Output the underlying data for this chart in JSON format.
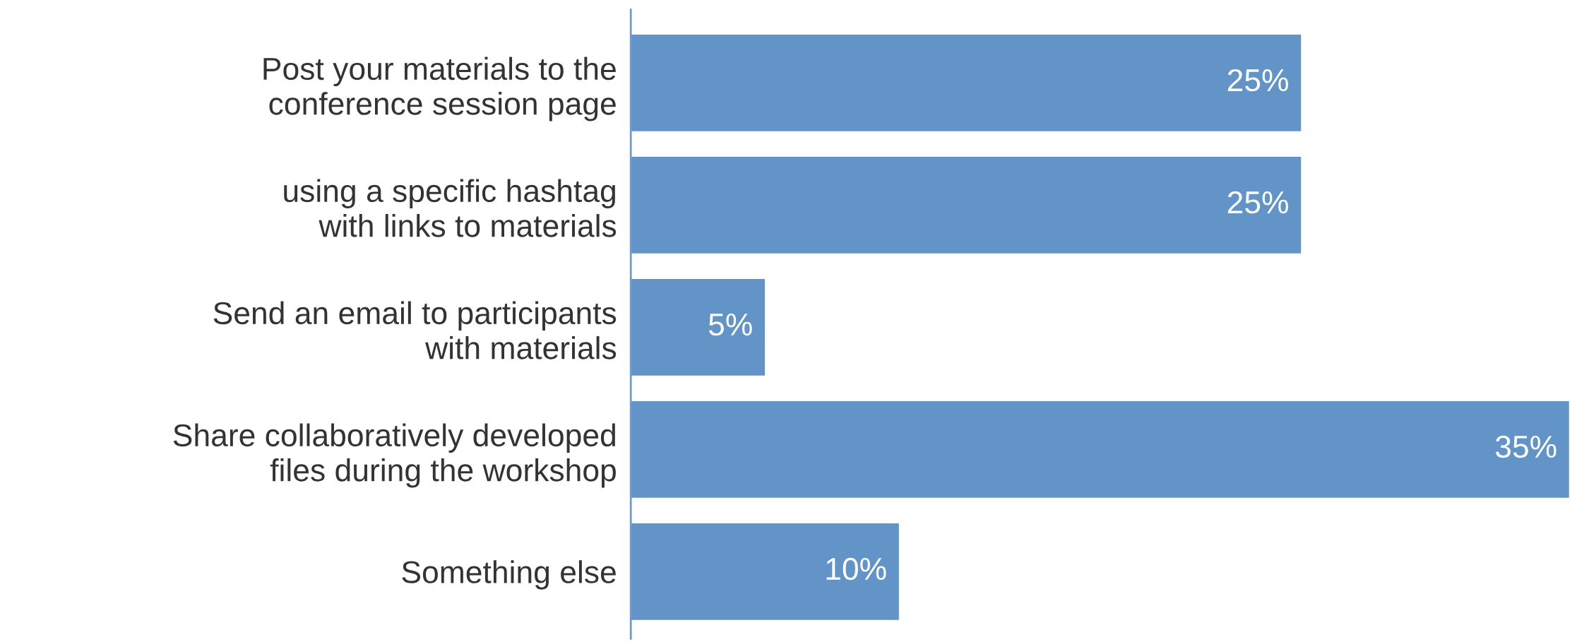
{
  "chart_data": {
    "type": "bar",
    "orientation": "horizontal",
    "categories": [
      "Post your materials to the\nconference session page",
      "using a specific hashtag\nwith links to materials",
      "Send an email to participants\nwith materials",
      "Share collaboratively developed\nfiles during the workshop",
      "Something else"
    ],
    "values": [
      25,
      25,
      5,
      35,
      10
    ],
    "value_labels": [
      "25%",
      "25%",
      "5%",
      "35%",
      "10%"
    ],
    "color": "#6394c8",
    "xlim": [
      0,
      35
    ],
    "tick_labels": "y",
    "grid": false,
    "legend": false
  }
}
